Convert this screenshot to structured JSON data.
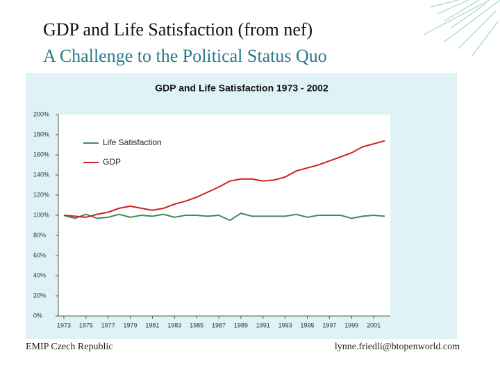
{
  "slide": {
    "title": "GDP and Life Satisfaction (from nef)",
    "subtitle": "A Challenge to the Political Status Quo",
    "footer_left": "EMIP Czech Republic",
    "footer_right": "lynne.friedli@btopenworld.com"
  },
  "chart_data": {
    "type": "line",
    "title": "GDP and Life Satisfaction 1973 - 2002",
    "x": [
      1973,
      1974,
      1975,
      1976,
      1977,
      1978,
      1979,
      1980,
      1981,
      1982,
      1983,
      1984,
      1985,
      1986,
      1987,
      1988,
      1989,
      1990,
      1991,
      1992,
      1993,
      1994,
      1995,
      1996,
      1997,
      1998,
      1999,
      2000,
      2001,
      2002
    ],
    "xlim": [
      1972.5,
      2002.5
    ],
    "xticks": [
      1973,
      1975,
      1977,
      1979,
      1981,
      1983,
      1985,
      1987,
      1989,
      1991,
      1993,
      1995,
      1997,
      1999,
      2001
    ],
    "ylim": [
      0,
      200
    ],
    "yticks": [
      {
        "value": 0,
        "label": "0%"
      },
      {
        "value": 20,
        "label": "20%"
      },
      {
        "value": 40,
        "label": "40%"
      },
      {
        "value": 60,
        "label": "60%"
      },
      {
        "value": 80,
        "label": "80%"
      },
      {
        "value": 100,
        "label": "100%"
      },
      {
        "value": 120,
        "label": "120%"
      },
      {
        "value": 140,
        "label": "140%"
      },
      {
        "value": 160,
        "label": "160%"
      },
      {
        "value": 180,
        "label": "180%"
      },
      {
        "value": 200,
        "label": "200%"
      }
    ],
    "grid": false,
    "legend": "upper left",
    "series": [
      {
        "name": "Life Satisfaction",
        "color": "#3a8a68",
        "values": [
          100,
          97,
          101,
          97,
          98,
          101,
          98,
          100,
          99,
          101,
          98,
          100,
          100,
          99,
          100,
          95,
          102,
          99,
          99,
          99,
          99,
          101,
          98,
          100,
          100,
          100,
          97,
          99,
          100,
          99
        ]
      },
      {
        "name": "GDP",
        "color": "#cc2222",
        "values": [
          100,
          99,
          98,
          101,
          103,
          107,
          109,
          107,
          105,
          107,
          111,
          114,
          118,
          123,
          128,
          134,
          136,
          136,
          134,
          135,
          138,
          144,
          147,
          150,
          154,
          158,
          162,
          168,
          171,
          174
        ]
      }
    ]
  }
}
